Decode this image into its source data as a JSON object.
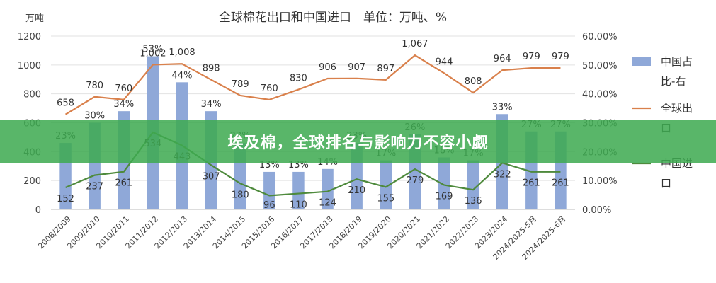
{
  "banner": {
    "text": "埃及棉，全球排名与影响力不容小觑"
  },
  "chart_data": {
    "type": "bar",
    "title": "全球棉花出口和中国进口　单位：万吨、%",
    "y_unit_label": "万吨",
    "categories": [
      "2008/2009",
      "2009/2010",
      "2010/2011",
      "2011/2012",
      "2012/2013",
      "2013/2014",
      "2014/2015",
      "2015/2016",
      "2016/2017",
      "2017/2018",
      "2018/2019",
      "2019/2020",
      "2020/2021",
      "2021/2022",
      "2022/2023",
      "2023/2024",
      "2024/2025-5月",
      "2024/2025-6月"
    ],
    "y_ticks": [
      "0",
      "200",
      "400",
      "600",
      "800",
      "1000",
      "1200"
    ],
    "y2_ticks": [
      "0.00%",
      "10.00%",
      "20.00%",
      "30.00%",
      "40.00%",
      "50.00%",
      "60.00%"
    ],
    "ylim": [
      0,
      1200
    ],
    "y2lim": [
      0,
      60
    ],
    "grid": true,
    "legend_position": "right",
    "series": [
      {
        "name": "中国占比-右",
        "kind": "bar",
        "axis": "right",
        "color": "#8fa8d8",
        "values": [
          23,
          30,
          34,
          53,
          44,
          34,
          23,
          13,
          13,
          14,
          23,
          17,
          26,
          18,
          17,
          33,
          27,
          27
        ],
        "labels": [
          "23%",
          "30%",
          "34%",
          "53%",
          "44%",
          "34%",
          "23%",
          "13%",
          "13%",
          "14%",
          "23%",
          "17%",
          "26%",
          "18%",
          "17%",
          "33%",
          "27%",
          "27%"
        ]
      },
      {
        "name": "全球出口",
        "kind": "line",
        "axis": "left",
        "color": "#d9804b",
        "values": [
          658,
          780,
          760,
          1002,
          1008,
          898,
          789,
          760,
          830,
          906,
          907,
          897,
          1067,
          944,
          808,
          964,
          979,
          979
        ],
        "labels": [
          "658",
          "780",
          "760",
          "1,002",
          "1,008",
          "898",
          "789",
          "760",
          "830",
          "906",
          "907",
          "897",
          "1,067",
          "944",
          "808",
          "964",
          "979",
          "979"
        ]
      },
      {
        "name": "中国进口",
        "kind": "line",
        "axis": "left",
        "color": "#4e8a3c",
        "values": [
          152,
          237,
          261,
          534,
          443,
          307,
          180,
          96,
          110,
          124,
          210,
          155,
          279,
          169,
          136,
          322,
          261,
          261
        ],
        "labels": [
          "152",
          "237",
          "261",
          "534",
          "443",
          "307",
          "180",
          "96",
          "110",
          "124",
          "210",
          "155",
          "279",
          "169",
          "136",
          "322",
          "261",
          "261"
        ]
      }
    ],
    "legend": [
      {
        "text": "中国占比-右",
        "line1": "中国占",
        "line2": "比-右",
        "kind": "bar",
        "color": "#8fa8d8"
      },
      {
        "text": "全球出口",
        "line1": "全球出",
        "line2": "口",
        "kind": "line",
        "color": "#d9804b"
      },
      {
        "text": "中国进口",
        "line1": "中国进",
        "line2": "口",
        "kind": "line",
        "color": "#4e8a3c"
      }
    ]
  }
}
